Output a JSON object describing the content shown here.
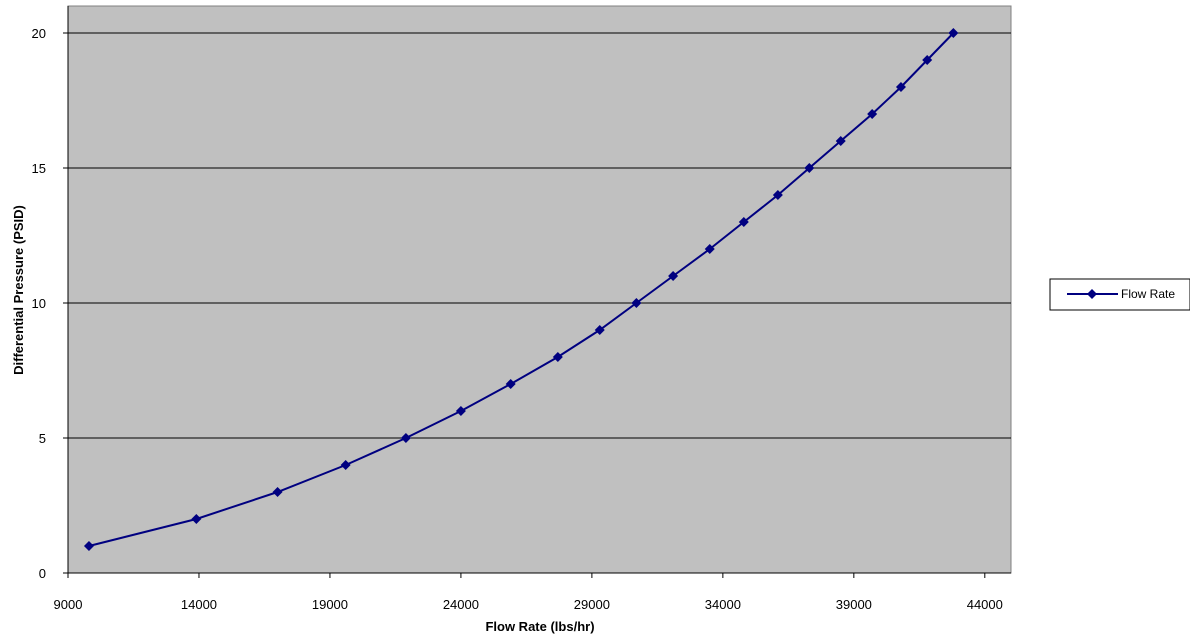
{
  "chart_data": {
    "type": "line",
    "title": "",
    "xlabel": "Flow Rate (lbs/hr)",
    "ylabel": "Differential Pressure (PSID)",
    "xlim": [
      9000,
      45000
    ],
    "ylim": [
      0,
      21
    ],
    "x_ticks": [
      "9000",
      "14000",
      "19000",
      "24000",
      "29000",
      "34000",
      "39000",
      "44000"
    ],
    "y_ticks": [
      "0",
      "5",
      "10",
      "15",
      "20"
    ],
    "grid": "horizontal",
    "legend_position": "right",
    "plot_background": "#c0c0c0",
    "series": [
      {
        "name": "Flow Rate",
        "color": "#000080",
        "marker": "diamond",
        "x": [
          9800,
          13900,
          17000,
          19600,
          21900,
          24000,
          25900,
          27700,
          29300,
          30700,
          32100,
          33500,
          34800,
          36100,
          37300,
          38500,
          39700,
          40800,
          41800,
          42800
        ],
        "y": [
          1,
          2,
          3,
          4,
          5,
          6,
          7,
          8,
          9,
          10,
          11,
          12,
          13,
          14,
          15,
          16,
          17,
          18,
          19,
          20
        ]
      }
    ]
  }
}
